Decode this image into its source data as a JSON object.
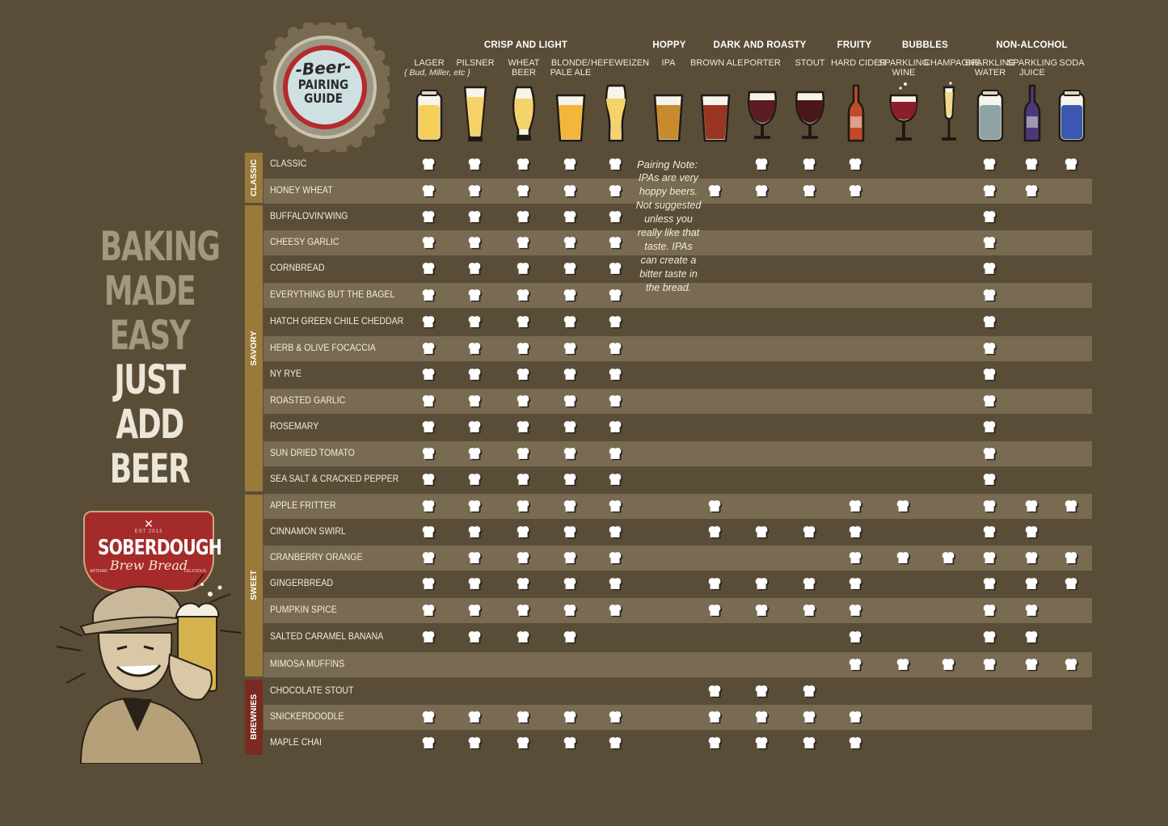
{
  "tagline": {
    "lines": [
      "BAKING",
      "MADE",
      "EASY"
    ],
    "lines_bright": [
      "JUST",
      "ADD",
      "BEER"
    ]
  },
  "logo": {
    "line1": "-Beer-",
    "line2": "PAIRING",
    "line3": "GUIDE"
  },
  "brand": {
    "est": "EST 2013",
    "name": "SOBERDOUGH",
    "sub": "Brew Bread",
    "left": "ARTISAN",
    "right": "DELICIOUS"
  },
  "colors": {
    "background": "#5a4d38",
    "shade_row": "#786b52",
    "crisp": "#c8a74c",
    "hoppy": "#cf9a33",
    "dark": "#7a3426",
    "fruity": "#c25630",
    "bubbles": "#9e3e44",
    "nonalcohol": "#7f9296",
    "groups": "#9a7a3a",
    "brewnies": "#7a2a20"
  },
  "categories": [
    {
      "label": "CRISP AND LIGHT",
      "color": "#c8a74c"
    },
    {
      "label": "HOPPY",
      "color": "#cf9a33"
    },
    {
      "label": "DARK AND ROASTY",
      "color": "#7a3426"
    },
    {
      "label": "FRUITY",
      "color": "#c25630"
    },
    {
      "label": "BUBBLES",
      "color": "#9e3e44"
    },
    {
      "label": "NON-ALCOHOL",
      "color": "#7f9296"
    }
  ],
  "columns": [
    {
      "label": "LAGER",
      "note": "{ Bud, Miller, etc }",
      "glass": "can",
      "fill": "#f4cf5a"
    },
    {
      "label": "PILSNER",
      "note": "",
      "glass": "pilsner",
      "fill": "#f6d36a"
    },
    {
      "label": "WHEAT\nBEER",
      "note": "",
      "glass": "tulip",
      "fill": "#f5d36c"
    },
    {
      "label": "BLONDE/\nPALE ALE",
      "note": "",
      "glass": "pint",
      "fill": "#f3b63a"
    },
    {
      "label": "HEFEWEIZEN",
      "note": "",
      "glass": "weizen",
      "fill": "#f6d36a"
    },
    {
      "label": "IPA",
      "note": "",
      "glass": "pint",
      "fill": "#c98a2d"
    },
    {
      "label": "BROWN ALE",
      "note": "",
      "glass": "pint",
      "fill": "#9a3524"
    },
    {
      "label": "PORTER",
      "note": "",
      "glass": "snifter",
      "fill": "#5a1e22"
    },
    {
      "label": "STOUT",
      "note": "",
      "glass": "snifter",
      "fill": "#4a1818"
    },
    {
      "label": "HARD CIDER",
      "note": "",
      "glass": "bottle",
      "fill": "#c04a2a"
    },
    {
      "label": "SPARKLING\nWINE",
      "note": "",
      "glass": "wine",
      "fill": "#8a1f2a"
    },
    {
      "label": "CHAMPAGNE",
      "note": "",
      "glass": "flute",
      "fill": "#f2d98a"
    },
    {
      "label": "SPARKLING\nWATER",
      "note": "",
      "glass": "can",
      "fill": "#8ea3a6"
    },
    {
      "label": "SPARKLING\nJUICE",
      "note": "",
      "glass": "bottle",
      "fill": "#4a3a7a"
    },
    {
      "label": "SODA",
      "note": "",
      "glass": "can",
      "fill": "#3a58b0"
    }
  ],
  "groups": [
    {
      "label": "CLASSIC"
    },
    {
      "label": "SAVORY"
    },
    {
      "label": "SWEET"
    },
    {
      "label": "BREWNIES"
    }
  ],
  "rows": [
    {
      "label": "CLASSIC",
      "marks": [
        1,
        1,
        1,
        1,
        1,
        0,
        0,
        1,
        1,
        1,
        0,
        0,
        1,
        1,
        1
      ]
    },
    {
      "label": "HONEY WHEAT",
      "marks": [
        1,
        1,
        1,
        1,
        1,
        0,
        1,
        1,
        1,
        1,
        0,
        0,
        1,
        1,
        0
      ]
    },
    {
      "label": "BUFFALOVIN'WING",
      "marks": [
        1,
        1,
        1,
        1,
        1,
        0,
        0,
        0,
        0,
        0,
        0,
        0,
        1,
        0,
        0
      ]
    },
    {
      "label": "CHEESY GARLIC",
      "marks": [
        1,
        1,
        1,
        1,
        1,
        0,
        0,
        0,
        0,
        0,
        0,
        0,
        1,
        0,
        0
      ]
    },
    {
      "label": "CORNBREAD",
      "marks": [
        1,
        1,
        1,
        1,
        1,
        0,
        0,
        0,
        0,
        0,
        0,
        0,
        1,
        0,
        0
      ]
    },
    {
      "label": "EVERYTHING BUT THE BAGEL",
      "marks": [
        1,
        1,
        1,
        1,
        1,
        0,
        0,
        0,
        0,
        0,
        0,
        0,
        1,
        0,
        0
      ]
    },
    {
      "label": "HATCH GREEN CHILE CHEDDAR",
      "marks": [
        1,
        1,
        1,
        1,
        1,
        0,
        0,
        0,
        0,
        0,
        0,
        0,
        1,
        0,
        0
      ]
    },
    {
      "label": "HERB & OLIVE FOCACCIA",
      "marks": [
        1,
        1,
        1,
        1,
        1,
        0,
        0,
        0,
        0,
        0,
        0,
        0,
        1,
        0,
        0
      ]
    },
    {
      "label": "NY RYE",
      "marks": [
        1,
        1,
        1,
        1,
        1,
        0,
        0,
        0,
        0,
        0,
        0,
        0,
        1,
        0,
        0
      ]
    },
    {
      "label": "ROASTED GARLIC",
      "marks": [
        1,
        1,
        1,
        1,
        1,
        0,
        0,
        0,
        0,
        0,
        0,
        0,
        1,
        0,
        0
      ]
    },
    {
      "label": "ROSEMARY",
      "marks": [
        1,
        1,
        1,
        1,
        1,
        0,
        0,
        0,
        0,
        0,
        0,
        0,
        1,
        0,
        0
      ]
    },
    {
      "label": "SUN DRIED TOMATO",
      "marks": [
        1,
        1,
        1,
        1,
        1,
        0,
        0,
        0,
        0,
        0,
        0,
        0,
        1,
        0,
        0
      ]
    },
    {
      "label": "SEA SALT & CRACKED PEPPER",
      "marks": [
        1,
        1,
        1,
        1,
        1,
        0,
        0,
        0,
        0,
        0,
        0,
        0,
        1,
        0,
        0
      ]
    },
    {
      "label": "APPLE FRITTER",
      "marks": [
        1,
        1,
        1,
        1,
        1,
        0,
        1,
        0,
        0,
        1,
        1,
        0,
        1,
        1,
        1
      ]
    },
    {
      "label": "CINNAMON SWIRL",
      "marks": [
        1,
        1,
        1,
        1,
        1,
        0,
        1,
        1,
        1,
        1,
        0,
        0,
        1,
        1,
        0
      ]
    },
    {
      "label": "CRANBERRY ORANGE",
      "marks": [
        1,
        1,
        1,
        1,
        1,
        0,
        0,
        0,
        0,
        1,
        1,
        1,
        1,
        1,
        1
      ]
    },
    {
      "label": "GINGERBREAD",
      "marks": [
        1,
        1,
        1,
        1,
        1,
        0,
        1,
        1,
        1,
        1,
        0,
        0,
        1,
        1,
        1
      ]
    },
    {
      "label": "PUMPKIN SPICE",
      "marks": [
        1,
        1,
        1,
        1,
        1,
        0,
        1,
        1,
        1,
        1,
        0,
        0,
        1,
        1,
        0
      ]
    },
    {
      "label": "SALTED CARAMEL BANANA",
      "marks": [
        1,
        1,
        1,
        1,
        0,
        0,
        0,
        0,
        0,
        1,
        0,
        0,
        1,
        1,
        0
      ]
    },
    {
      "label": "MIMOSA MUFFINS",
      "marks": [
        0,
        0,
        0,
        0,
        0,
        0,
        0,
        0,
        0,
        1,
        1,
        1,
        1,
        1,
        1
      ]
    },
    {
      "label": "CHOCOLATE STOUT",
      "marks": [
        0,
        0,
        0,
        0,
        0,
        0,
        1,
        1,
        1,
        0,
        0,
        0,
        0,
        0,
        0
      ]
    },
    {
      "label": "SNICKERDOODLE",
      "marks": [
        1,
        1,
        1,
        1,
        1,
        0,
        1,
        1,
        1,
        1,
        0,
        0,
        0,
        0,
        0
      ]
    },
    {
      "label": "MAPLE CHAI",
      "marks": [
        1,
        1,
        1,
        1,
        1,
        0,
        1,
        1,
        1,
        1,
        0,
        0,
        0,
        0,
        0
      ]
    }
  ],
  "pairing_note": {
    "title": "Pairing Note:",
    "text": "IPAs are very hoppy beers. Not suggested unless you really like that taste. IPAs can create a bitter taste in the bread."
  }
}
